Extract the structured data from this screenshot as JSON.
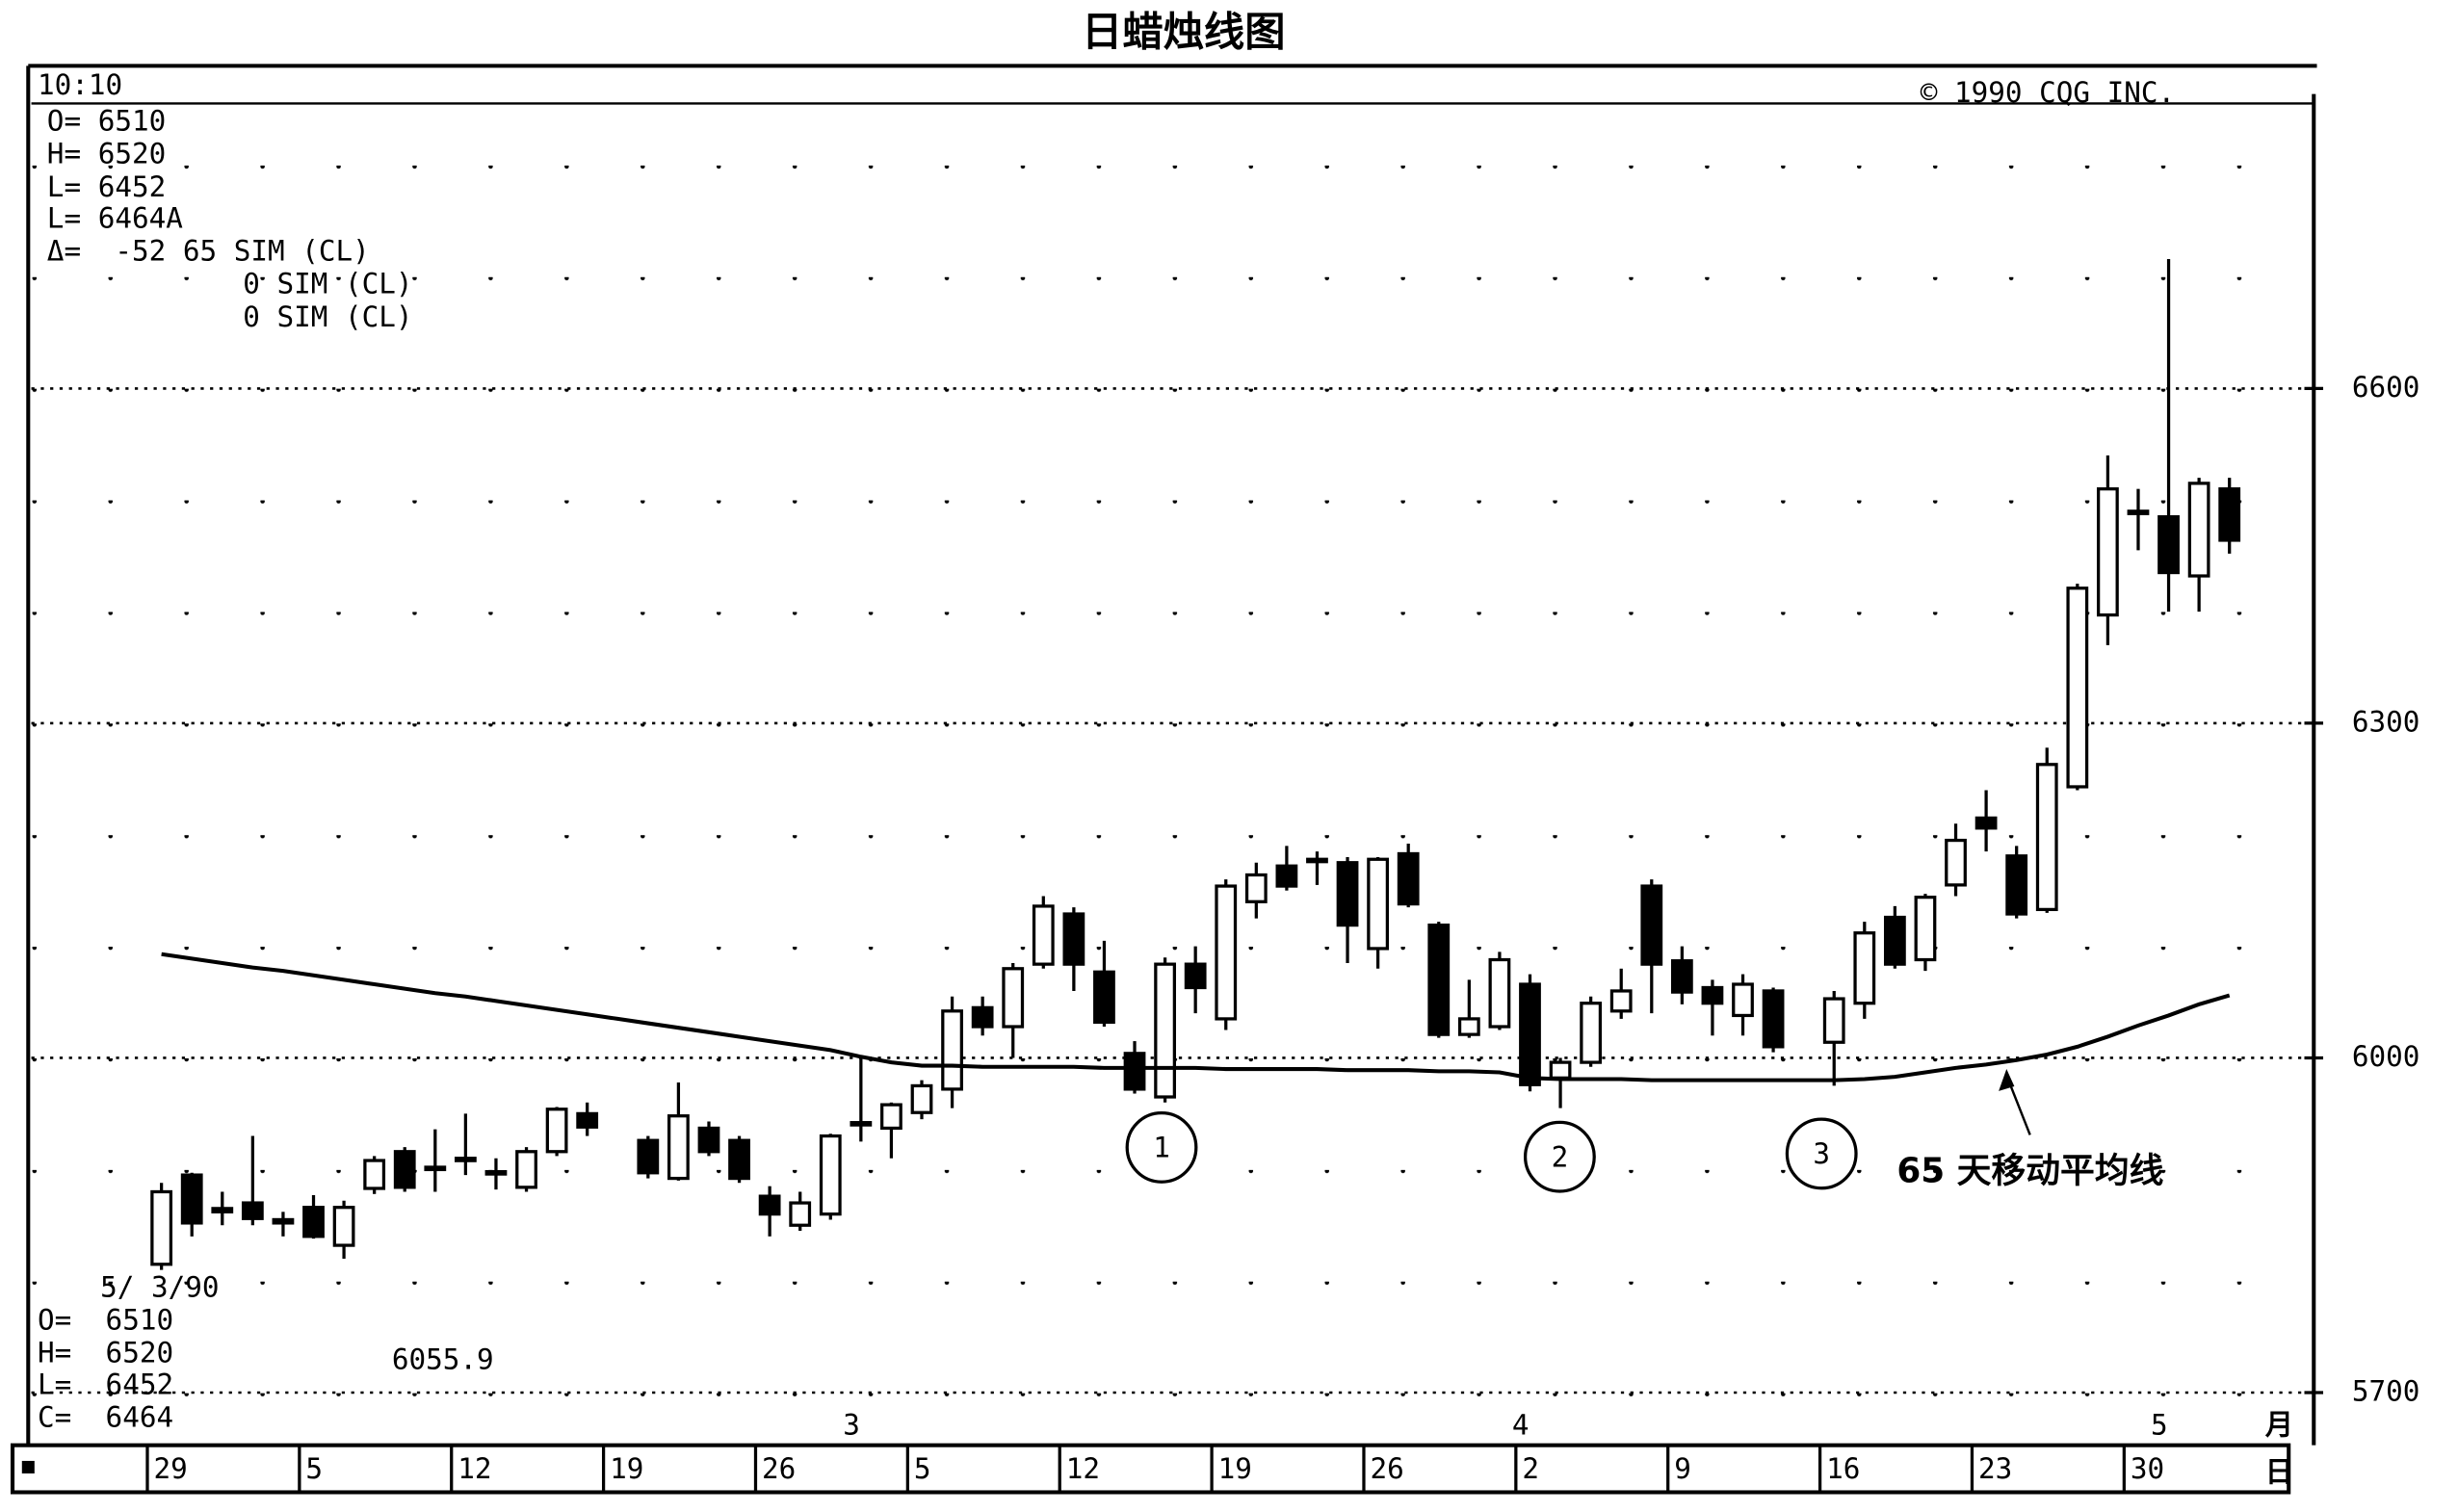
{
  "chart_data": {
    "type": "candlestick",
    "title": "日蜡烛线图",
    "time": "10:10",
    "copyright": "© 1990 CQG INC.",
    "info_top": [
      "O= 6510",
      "H= 6520",
      "L= 6452",
      "L= 6464A",
      "Δ=  -52 65 SIM (CL)",
      "0 SIM (CL)",
      "0 SIM (CL)"
    ],
    "info_bottom": [
      "5/ 3/90",
      "O=  6510",
      "H=  6520",
      "L=  6452",
      "C=  6464"
    ],
    "ma_value_label": "6055.9",
    "annotations": [
      "1",
      "2",
      "3"
    ],
    "x_month_label": "月",
    "x_day_label": "日",
    "categories": [
      "29",
      null,
      null,
      null,
      null,
      "5",
      null,
      null,
      null,
      null,
      "12",
      null,
      null,
      null,
      null,
      "19",
      null,
      null,
      null,
      null,
      "26",
      null,
      null,
      null,
      null,
      "5",
      null,
      null,
      null,
      null,
      "12",
      null,
      null,
      null,
      null,
      "19",
      null,
      null,
      null,
      null,
      "26",
      null,
      null,
      null,
      null,
      "2",
      null,
      null,
      null,
      null,
      "9",
      null,
      null,
      null,
      null,
      "16",
      null,
      null,
      null,
      null,
      "23",
      null,
      null,
      null,
      null,
      "30",
      null,
      null,
      null
    ],
    "months": [
      null,
      null,
      null,
      null,
      null,
      null,
      null,
      null,
      null,
      null,
      null,
      null,
      null,
      null,
      null,
      null,
      null,
      null,
      null,
      null,
      null,
      null,
      null,
      "3",
      null,
      null,
      null,
      null,
      null,
      null,
      null,
      null,
      null,
      null,
      null,
      null,
      null,
      null,
      null,
      null,
      null,
      null,
      null,
      null,
      null,
      "4",
      null,
      null,
      null,
      null,
      null,
      null,
      null,
      null,
      null,
      null,
      null,
      null,
      null,
      null,
      null,
      null,
      null,
      null,
      null,
      null,
      "5",
      null,
      null
    ],
    "open": [
      5815,
      5895,
      5865,
      5870,
      5855,
      5866,
      5832,
      5883,
      5916,
      5902,
      5910,
      5898,
      5884,
      5916,
      5950,
      null,
      5926,
      5892,
      5937,
      5926,
      5876,
      5850,
      5860,
      5942,
      5937,
      5951,
      5972,
      6045,
      6028,
      6084,
      6129,
      6077,
      6004,
      5965,
      6084,
      6035,
      6140,
      6172,
      6178,
      6175,
      6098,
      6183,
      6119,
      6021,
      6028,
      6066,
      5982,
      5996,
      6042,
      6154,
      6087,
      6063,
      6038,
      6060,
      null,
      6014,
      6049,
      6126,
      6088,
      6155,
      6215,
      6181,
      6133,
      6243,
      6397,
      6490,
      6485,
      6432,
      6510
    ],
    "high": [
      5888,
      5897,
      5880,
      5930,
      5862,
      5877,
      5872,
      5912,
      5920,
      5936,
      5950,
      5910,
      5920,
      5956,
      5960,
      null,
      5930,
      5978,
      5943,
      5930,
      5885,
      5880,
      5932,
      6000,
      5960,
      5980,
      6055,
      6055,
      6085,
      6145,
      6135,
      6105,
      6015,
      6090,
      6100,
      6160,
      6175,
      6190,
      6185,
      6180,
      6180,
      6192,
      6122,
      6070,
      6095,
      6075,
      6000,
      6055,
      6080,
      6160,
      6100,
      6070,
      6075,
      6063,
      null,
      6060,
      6122,
      6136,
      6147,
      6210,
      6240,
      6190,
      6278,
      6425,
      6540,
      6510,
      6716,
      6520,
      6520
    ],
    "low": [
      5810,
      5840,
      5850,
      5850,
      5840,
      5838,
      5820,
      5878,
      5880,
      5880,
      5895,
      5882,
      5880,
      5912,
      5930,
      null,
      5892,
      5890,
      5912,
      5888,
      5840,
      5845,
      5855,
      5925,
      5910,
      5945,
      5955,
      6020,
      6000,
      6080,
      6060,
      6028,
      5968,
      5960,
      6040,
      6025,
      6125,
      6150,
      6155,
      6085,
      6080,
      6135,
      6018,
      6018,
      6025,
      5970,
      5955,
      5992,
      6035,
      6040,
      6048,
      6020,
      6020,
      6005,
      null,
      5975,
      6035,
      6080,
      6078,
      6145,
      6185,
      6125,
      6130,
      6240,
      6370,
      6455,
      6400,
      6400,
      6452
    ],
    "close": [
      5880,
      5852,
      5862,
      5856,
      5852,
      5840,
      5866,
      5908,
      5884,
      5900,
      5908,
      5896,
      5916,
      5954,
      5938,
      null,
      5897,
      5948,
      5916,
      5892,
      5860,
      5870,
      5930,
      5940,
      5958,
      5975,
      6042,
      6028,
      6080,
      6136,
      6084,
      6032,
      5972,
      6084,
      6063,
      6154,
      6164,
      6154,
      6176,
      6119,
      6178,
      6138,
      6021,
      6035,
      6088,
      5976,
      5996,
      6049,
      6060,
      6084,
      6059,
      6049,
      6066,
      6010,
      null,
      6053,
      6112,
      6084,
      6144,
      6195,
      6206,
      6129,
      6263,
      6421,
      6510,
      6488,
      6435,
      6515,
      6464
    ],
    "moving_average": {
      "name": "65 天移动平均线",
      "color": "#000000",
      "values": [
        6093,
        6089,
        6085,
        6081,
        6078,
        6074,
        6070,
        6066,
        6062,
        6058,
        6055,
        6051,
        6047,
        6043,
        6039,
        6035,
        6031,
        6027,
        6023,
        6019,
        6015,
        6011,
        6007,
        6001,
        5996,
        5993,
        5993,
        5992,
        5992,
        5992,
        5992,
        5991,
        5991,
        5991,
        5991,
        5990,
        5990,
        5990,
        5990,
        5989,
        5989,
        5989,
        5988,
        5988,
        5987,
        5982,
        5981,
        5981,
        5981,
        5980,
        5980,
        5980,
        5980,
        5980,
        5980,
        5980,
        5981,
        5983,
        5987,
        5991,
        5994,
        5998,
        6003,
        6010,
        6019,
        6029,
        6038,
        6048,
        6056
      ]
    },
    "up_color": "#ffffff",
    "down_color": "#000000",
    "ylim": [
      5650,
      6885
    ],
    "yticks": [
      5700,
      6000,
      6300,
      6600
    ],
    "grid": true
  }
}
